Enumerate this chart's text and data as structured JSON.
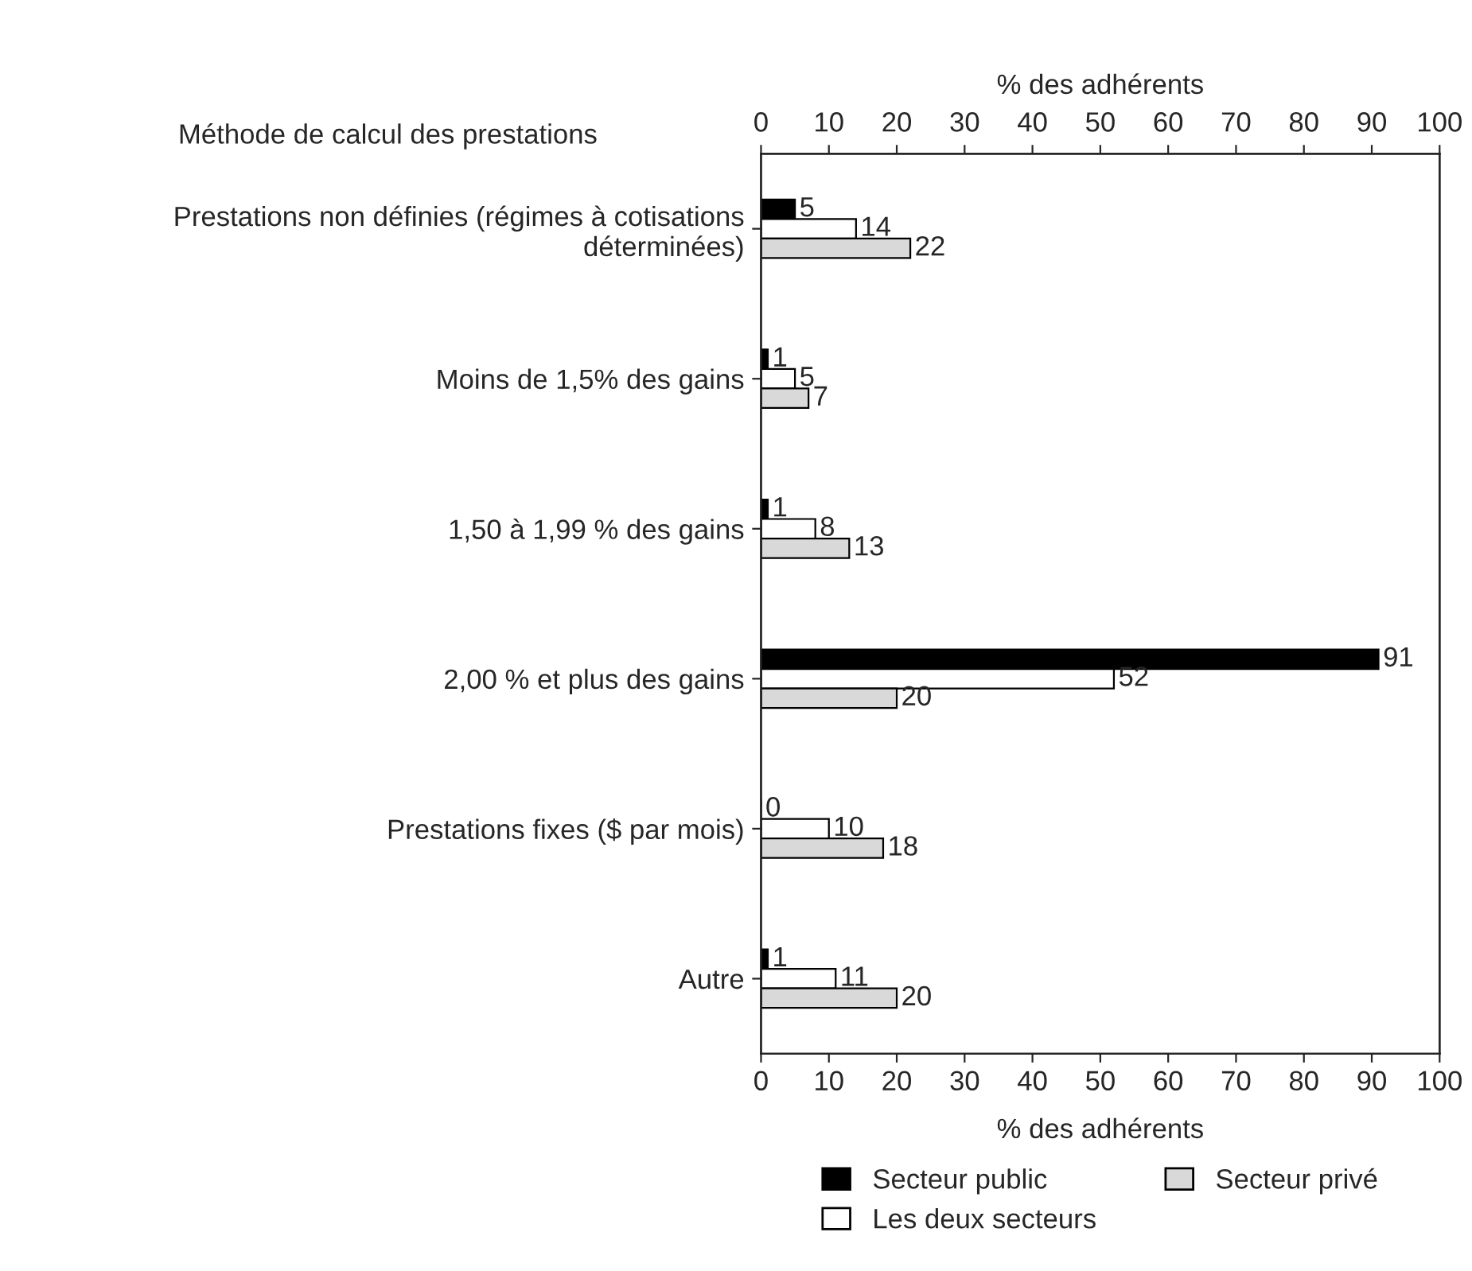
{
  "chart_data": {
    "type": "bar",
    "orientation": "horizontal",
    "ylabel": "Méthode de calcul des prestations",
    "xlabel": "% des adhérents",
    "x2label": "% des adhérents",
    "categories": [
      "Prestations non définies (régimes à cotisations\ndéterminées)",
      "Moins de 1,5% des gains",
      "1,50 à 1,99 % des gains",
      "2,00 % et plus des gains",
      "Prestations fixes ($ par mois)",
      "Autre"
    ],
    "series": [
      {
        "name": "Secteur public",
        "color": "#000000",
        "values": [
          5,
          1,
          1,
          91,
          0,
          1
        ]
      },
      {
        "name": "Les deux secteurs",
        "color": "#ffffff",
        "values": [
          14,
          5,
          8,
          52,
          10,
          11
        ]
      },
      {
        "name": "Secteur privé",
        "color": "#d9d9d9",
        "values": [
          22,
          7,
          13,
          20,
          18,
          20
        ]
      }
    ],
    "xlim": [
      0,
      100
    ],
    "xticks": [
      0,
      10,
      20,
      30,
      40,
      50,
      60,
      70,
      80,
      90,
      100
    ],
    "x2lim": [
      0,
      100
    ],
    "x2ticks": [
      0,
      10,
      20,
      30,
      40,
      50,
      60,
      70,
      80,
      90,
      100
    ],
    "data_labels": true,
    "legend": "bottom",
    "grid": false
  }
}
